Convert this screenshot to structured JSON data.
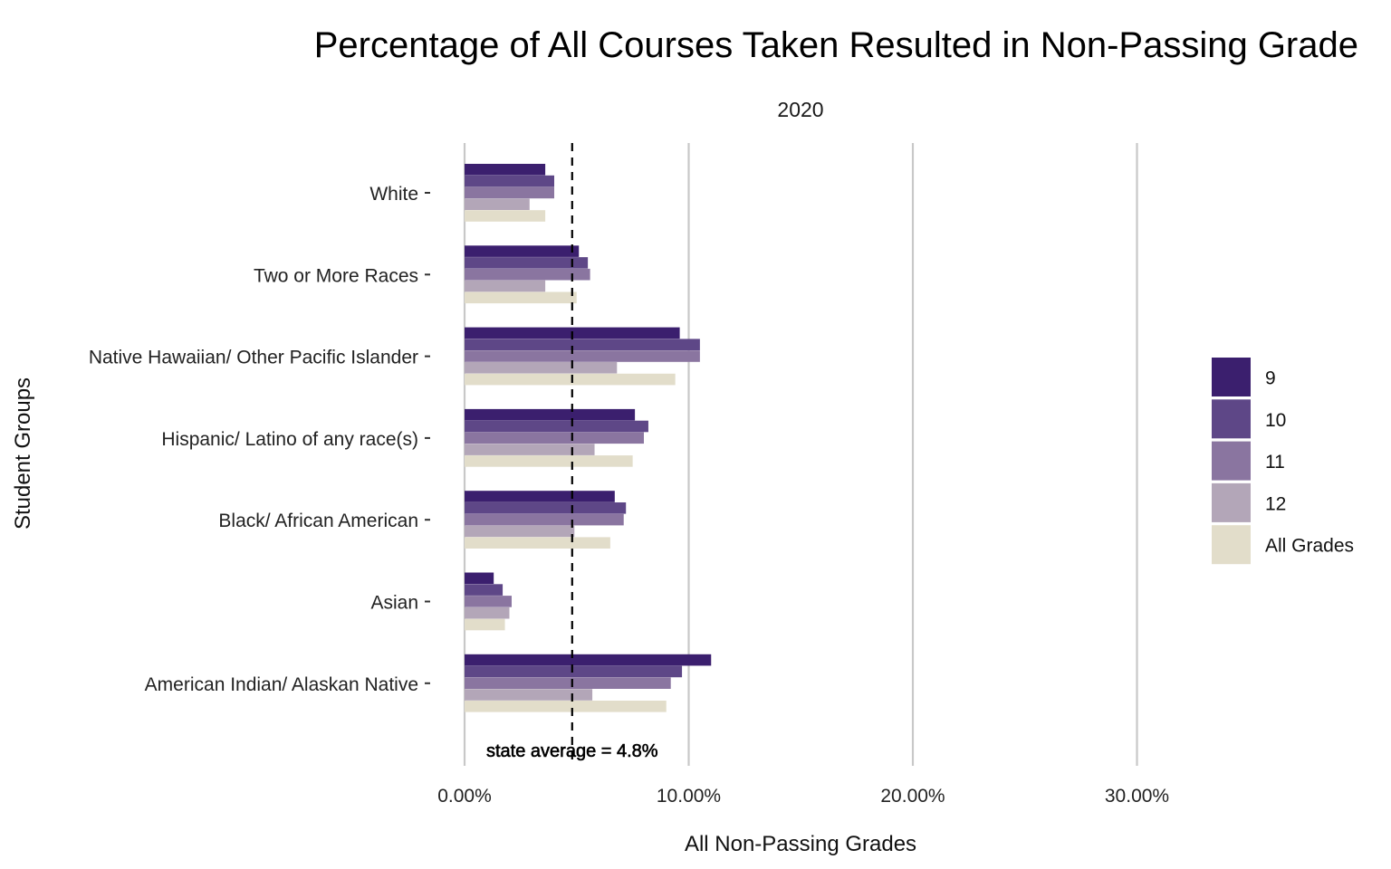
{
  "chart_data": {
    "type": "bar",
    "orientation": "horizontal",
    "title": "Percentage of All Courses Taken Resulted in Non-Passing Grade",
    "facet_label": "2020",
    "xlabel": "All Non-Passing Grades",
    "ylabel": "Student Groups",
    "xlim": [
      0,
      0.35
    ],
    "x_ticks": [
      0,
      0.1,
      0.2,
      0.3
    ],
    "x_tick_labels": [
      "0.00%",
      "10.00%",
      "20.00%",
      "30.00%"
    ],
    "grid": "vertical major gridlines",
    "legend_position": "right",
    "categories": [
      "White",
      "Two or More Races",
      "Native Hawaiian/ Other Pacific Islander",
      "Hispanic/ Latino of any race(s)",
      "Black/ African American",
      "Asian",
      "American Indian/ Alaskan Native"
    ],
    "series": [
      {
        "name": "9",
        "color": "#3b1f6e",
        "values": [
          0.036,
          0.051,
          0.096,
          0.076,
          0.067,
          0.013,
          0.11
        ]
      },
      {
        "name": "10",
        "color": "#5e4787",
        "values": [
          0.04,
          0.055,
          0.105,
          0.082,
          0.072,
          0.017,
          0.097
        ]
      },
      {
        "name": "11",
        "color": "#8a75a0",
        "values": [
          0.04,
          0.056,
          0.105,
          0.08,
          0.071,
          0.021,
          0.092
        ]
      },
      {
        "name": "12",
        "color": "#b3a6b8",
        "values": [
          0.029,
          0.036,
          0.068,
          0.058,
          0.049,
          0.02,
          0.057
        ]
      },
      {
        "name": "All Grades",
        "color": "#e2ddca",
        "values": [
          0.036,
          0.05,
          0.094,
          0.075,
          0.065,
          0.018,
          0.09
        ]
      }
    ],
    "reference_line": {
      "value": 0.048,
      "style": "dashed",
      "label": "state average = 4.8%"
    }
  }
}
